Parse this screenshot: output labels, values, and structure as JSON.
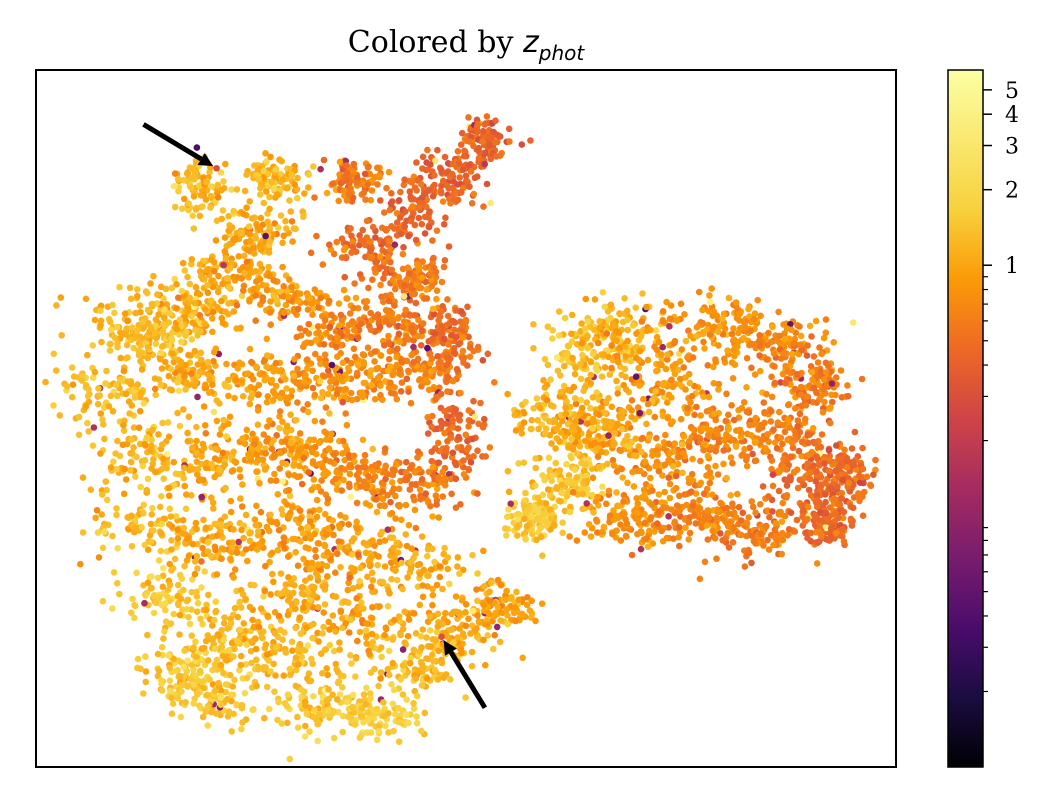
{
  "chart_data": {
    "type": "scatter",
    "title": "Colored by z_phot",
    "title_text": "Colored by ",
    "title_symbol": "z",
    "title_subscript": "phot",
    "xlabel": "",
    "ylabel": "",
    "x_ticks_shown": false,
    "y_ticks_shown": false,
    "colormap": "inferno",
    "colorbar": {
      "scale": "log",
      "range": [
        0.01,
        6
      ],
      "major_ticks": [
        {
          "value": 1,
          "label": "1"
        },
        {
          "value": 2,
          "label": "2"
        },
        {
          "value": 3,
          "label": "3"
        },
        {
          "value": 4,
          "label": "4"
        },
        {
          "value": 5,
          "label": "5"
        }
      ],
      "minor_ticks": [
        0.02,
        0.03,
        0.04,
        0.05,
        0.06,
        0.07,
        0.08,
        0.09,
        0.2,
        0.3,
        0.4,
        0.5,
        0.6,
        0.7,
        0.8,
        0.9
      ]
    },
    "clusters": [
      {
        "name": "",
        "x_range": [
          5,
          55
        ],
        "y_range": [
          5,
          95
        ],
        "shape": "left-island",
        "typical_z": [
          0.6,
          1.8
        ]
      },
      {
        "name": "",
        "x_range": [
          57,
          96
        ],
        "y_range": [
          30,
          72
        ],
        "shape": "right-island",
        "typical_z": [
          0.3,
          1.2
        ]
      }
    ],
    "annotations": [
      {
        "type": "arrow",
        "pointing_to": "outlier point, upper left",
        "x": 20.6,
        "y": 86.2
      },
      {
        "type": "arrow",
        "pointing_to": "outlier point, lower middle",
        "x": 47.4,
        "y": 18.2
      }
    ],
    "grid": false,
    "legend": "none"
  }
}
